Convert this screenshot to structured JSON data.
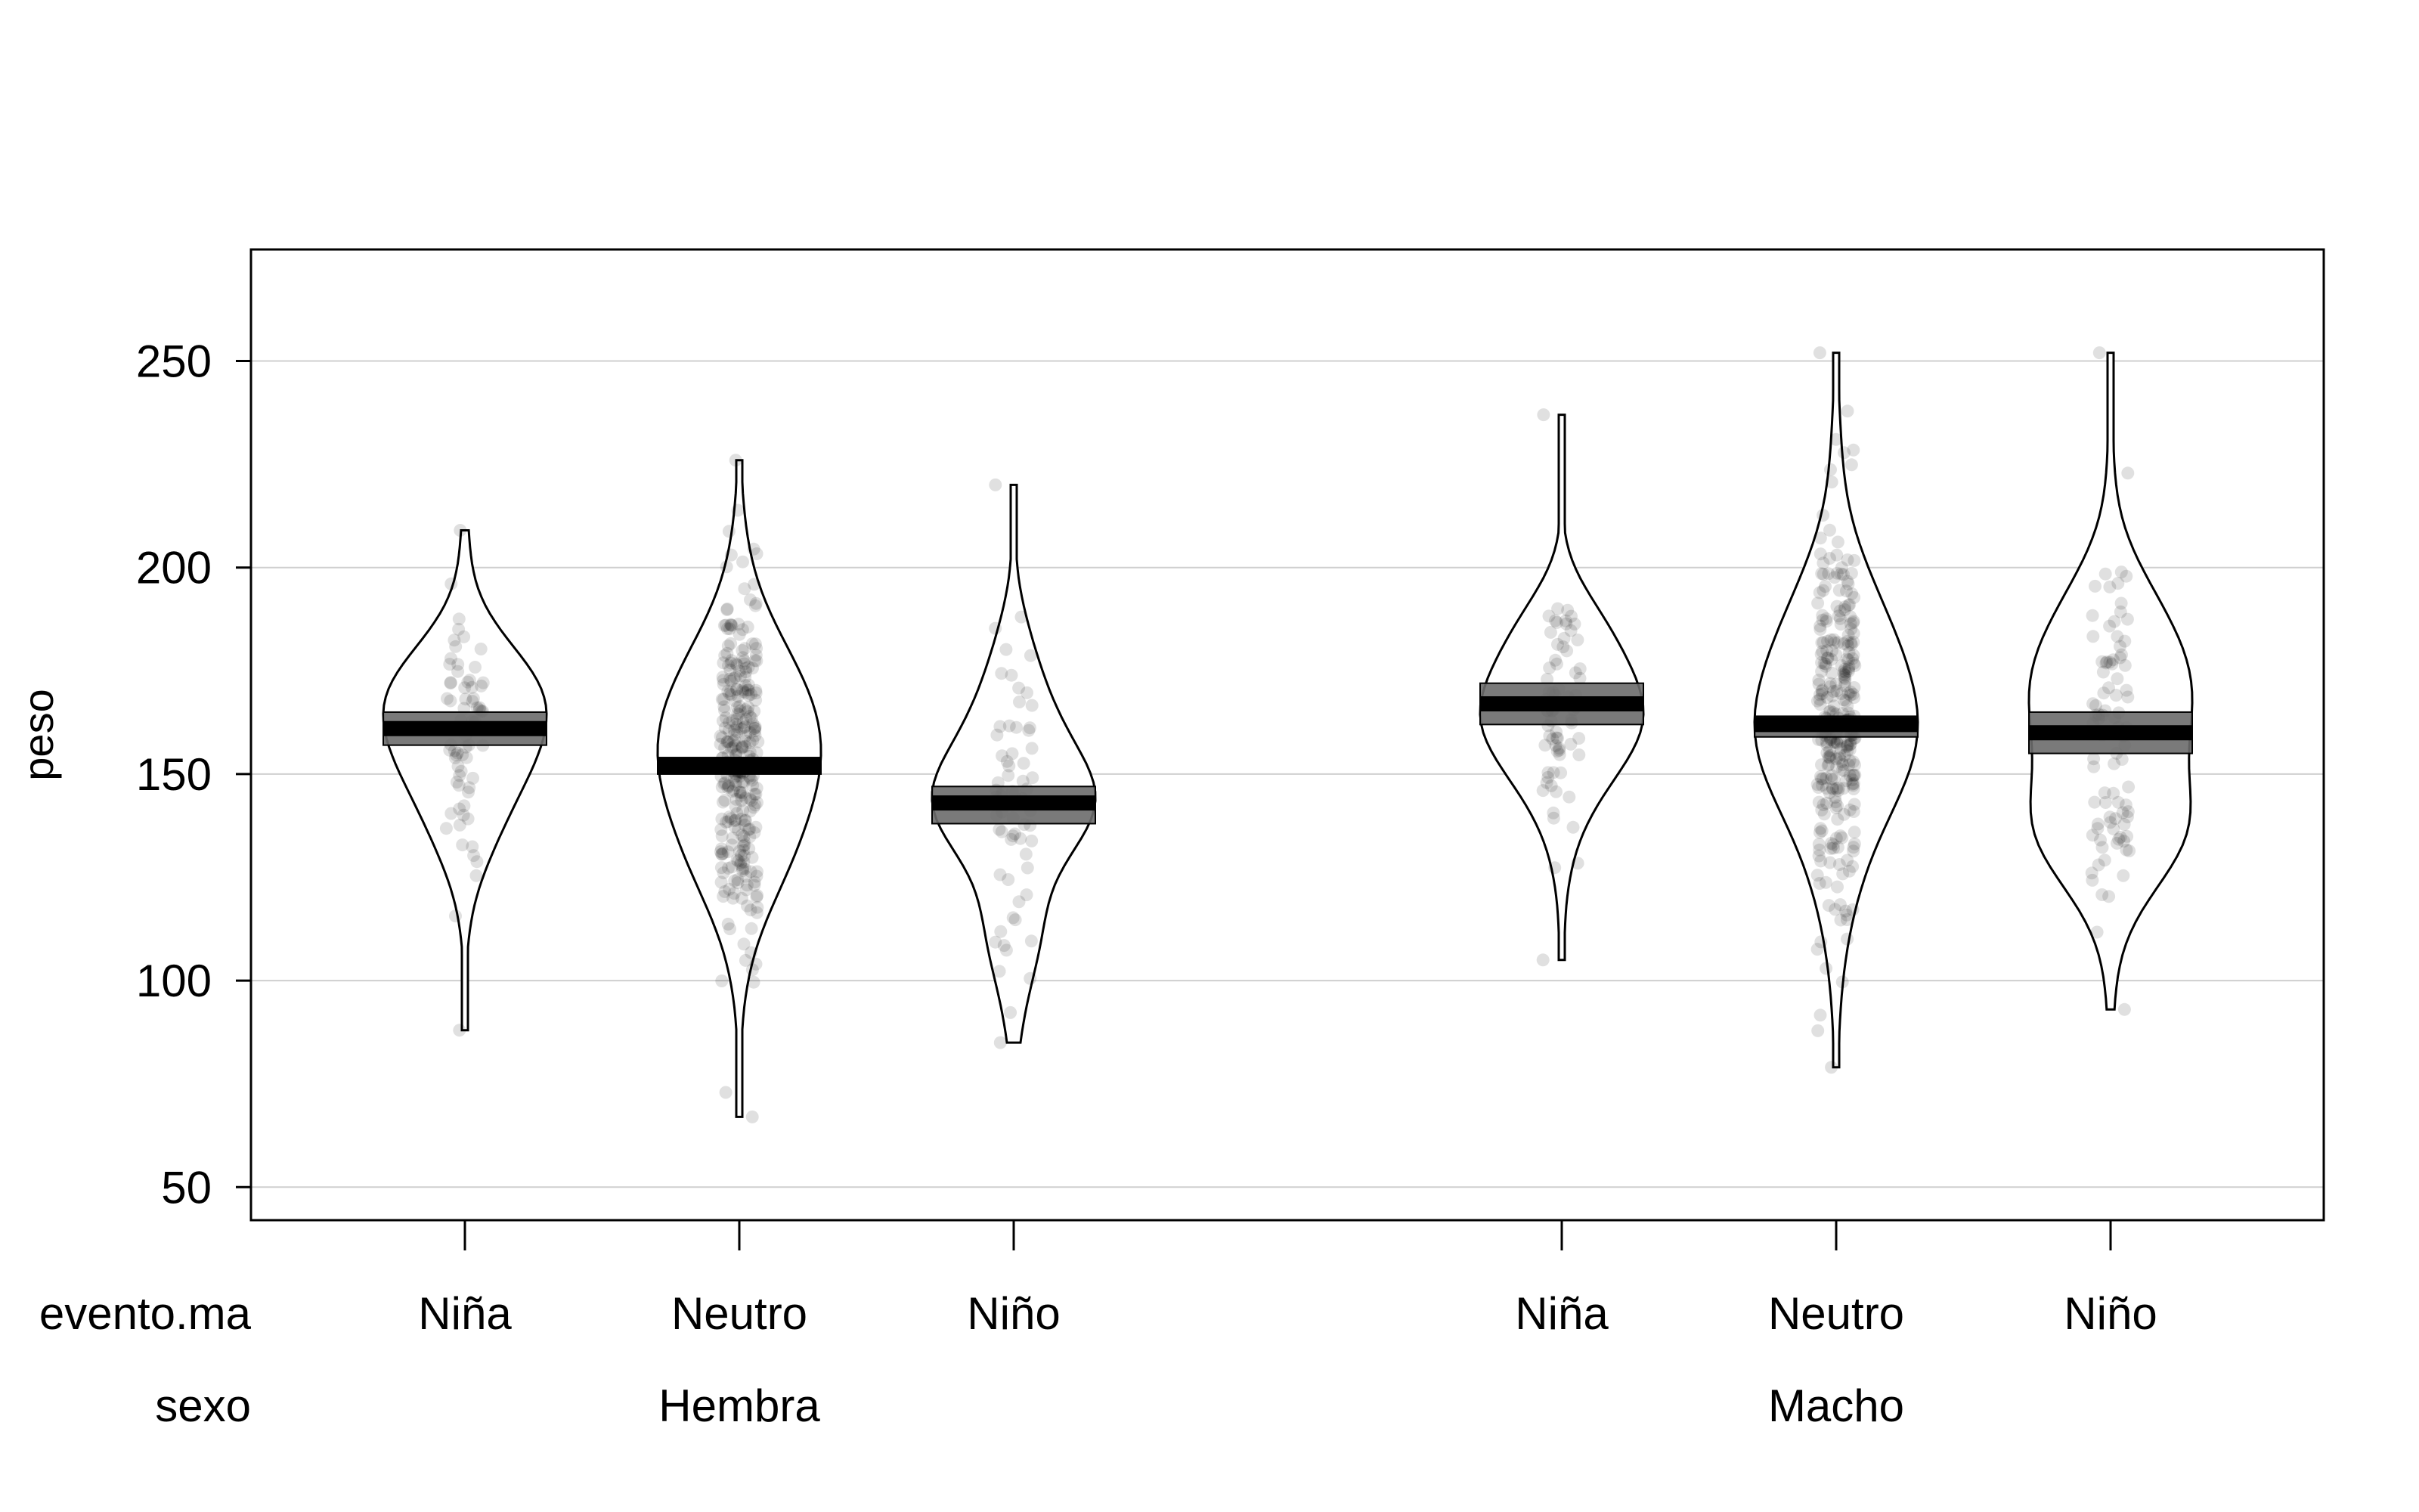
{
  "chart_data": {
    "type": "violin",
    "ylabel": "peso",
    "ylim": [
      42,
      277
    ],
    "yticks": [
      50,
      100,
      150,
      200,
      250
    ],
    "grid": true,
    "row_labels": {
      "category": "evento.ma",
      "group": "sexo"
    },
    "groups": [
      {
        "name": "Hembra",
        "categories": [
          "Niña",
          "Neutro",
          "Niño"
        ]
      },
      {
        "name": "Macho",
        "categories": [
          "Niña",
          "Neutro",
          "Niño"
        ]
      }
    ],
    "series": [
      {
        "group": "Hembra",
        "category": "Niña",
        "mean": 161,
        "ci": [
          157,
          165
        ],
        "min": 88,
        "max": 209,
        "n": 70
      },
      {
        "group": "Hembra",
        "category": "Neutro",
        "mean": 152,
        "ci": [
          150,
          154
        ],
        "min": 67,
        "max": 226,
        "n": 300
      },
      {
        "group": "Hembra",
        "category": "Niño",
        "mean": 143,
        "ci": [
          138,
          147
        ],
        "min": 85,
        "max": 220,
        "n": 70
      },
      {
        "group": "Macho",
        "category": "Niña",
        "mean": 167,
        "ci": [
          162,
          172
        ],
        "min": 105,
        "max": 237,
        "n": 75
      },
      {
        "group": "Macho",
        "category": "Neutro",
        "mean": 162,
        "ci": [
          159,
          164
        ],
        "min": 79,
        "max": 252,
        "n": 300
      },
      {
        "group": "Macho",
        "category": "Niño",
        "mean": 160,
        "ci": [
          155,
          165
        ],
        "min": 93,
        "max": 252,
        "n": 90
      }
    ]
  }
}
